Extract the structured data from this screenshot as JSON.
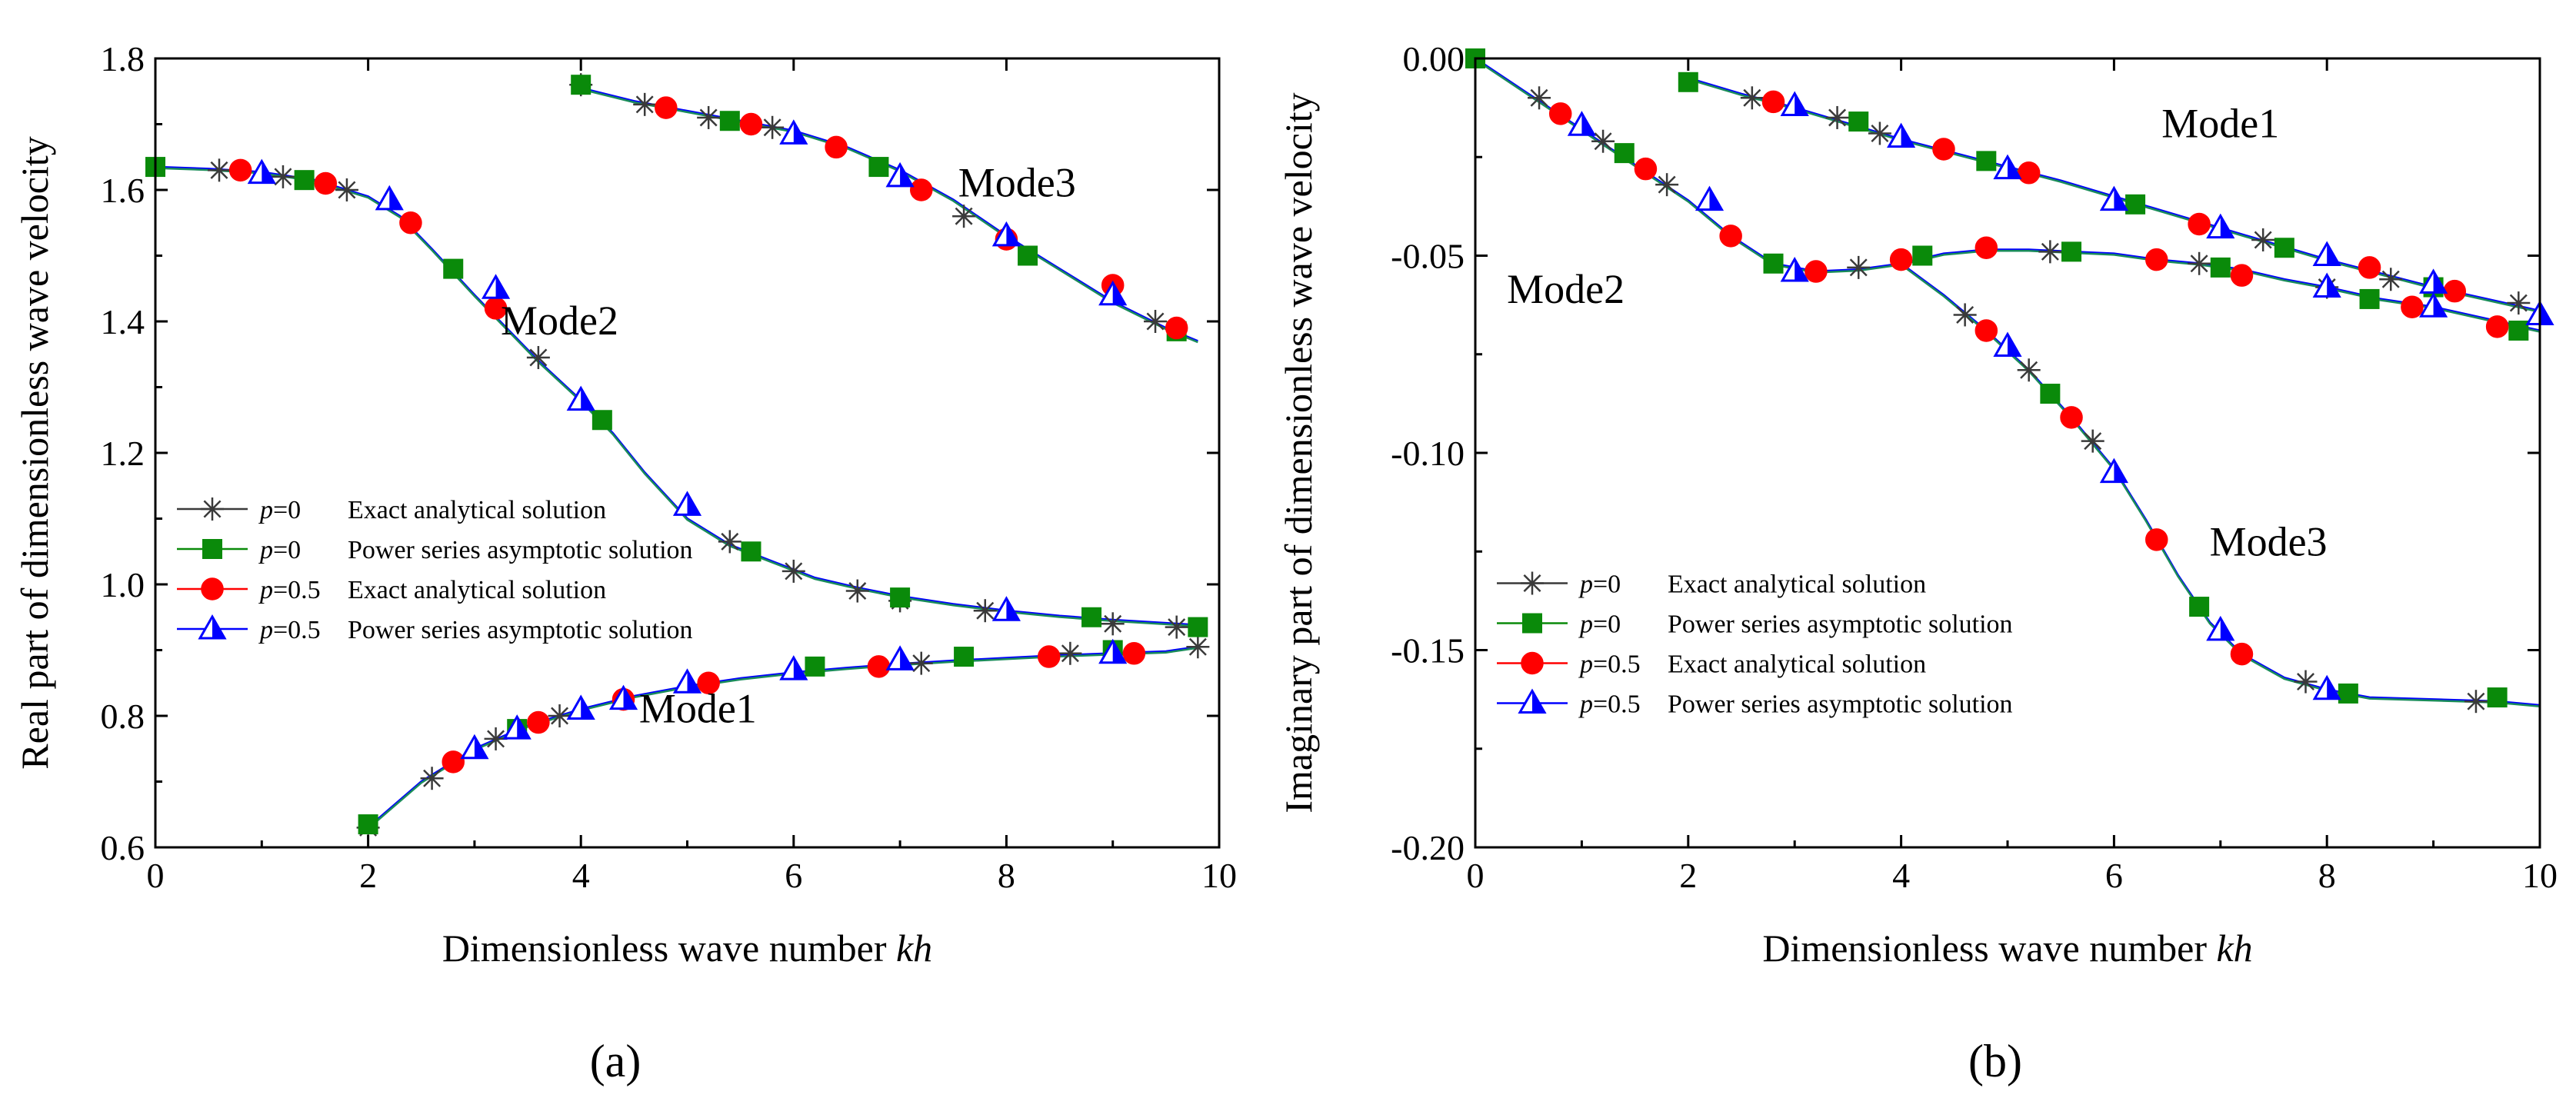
{
  "colors": {
    "exact_p0": "#3a3a3a",
    "series_p0": "#0a8a0a",
    "exact_p05": "#ff0000",
    "series_p05": "#0000ff",
    "curve": "#1a8c5a"
  },
  "chart_data": [
    {
      "type": "line",
      "panel_label": "(a)",
      "xlabel": "Dimensionless wave number ",
      "xlabel_italic": "kh",
      "ylabel": "Real part of dimensionless wave velocity",
      "xlim": [
        0,
        10
      ],
      "ylim": [
        0.6,
        1.8
      ],
      "xticks": [
        0,
        2,
        4,
        6,
        8,
        10
      ],
      "yticks": [
        0.6,
        0.8,
        1.0,
        1.2,
        1.4,
        1.6,
        1.8
      ],
      "ytick_labels": [
        "0.6",
        "0.8",
        "1.0",
        "1.2",
        "1.4",
        "1.6",
        "1.8"
      ],
      "xtick_labels": [
        "0",
        "2",
        "4",
        "6",
        "8",
        "10"
      ],
      "legend_position": "bottom-left",
      "legend": [
        {
          "p": "p",
          "eq": "=0",
          "desc": "Exact analytical solution",
          "marker": "star",
          "color_key": "exact_p0"
        },
        {
          "p": "p",
          "eq": "=0",
          "desc": "Power series asymptotic solution",
          "marker": "square",
          "color_key": "series_p0"
        },
        {
          "p": "p",
          "eq": "=0.5",
          "desc": "Exact analytical solution",
          "marker": "circle",
          "color_key": "exact_p05"
        },
        {
          "p": "p",
          "eq": "=0.5",
          "desc": "Power series asymptotic solution",
          "marker": "triangle",
          "color_key": "series_p05"
        }
      ],
      "annotations": [
        {
          "text": "Mode3",
          "x": 8.1,
          "y": 1.59
        },
        {
          "text": "Mode2",
          "x": 3.8,
          "y": 1.38
        },
        {
          "text": "Mode1",
          "x": 5.1,
          "y": 0.79
        }
      ],
      "curves": [
        {
          "mode": "Mode1",
          "x": [
            2.0,
            2.5,
            3.0,
            3.5,
            4.0,
            4.5,
            5.0,
            5.5,
            6.0,
            6.5,
            7.0,
            7.5,
            8.0,
            8.5,
            9.0,
            9.5,
            9.8
          ],
          "y": [
            0.63,
            0.7,
            0.75,
            0.785,
            0.81,
            0.83,
            0.845,
            0.857,
            0.866,
            0.873,
            0.879,
            0.884,
            0.888,
            0.892,
            0.895,
            0.898,
            0.905
          ]
        },
        {
          "mode": "Mode2",
          "x": [
            0.0,
            0.5,
            1.0,
            1.5,
            2.0,
            2.3,
            2.6,
            3.0,
            3.3,
            3.6,
            4.0,
            4.3,
            4.6,
            5.0,
            5.4,
            5.8,
            6.2,
            6.6,
            7.0,
            7.5,
            8.0,
            8.5,
            9.0,
            9.5,
            9.8
          ],
          "y": [
            1.635,
            1.632,
            1.627,
            1.615,
            1.59,
            1.56,
            1.51,
            1.44,
            1.39,
            1.34,
            1.28,
            1.23,
            1.17,
            1.1,
            1.06,
            1.035,
            1.01,
            0.995,
            0.982,
            0.97,
            0.96,
            0.952,
            0.946,
            0.941,
            0.938
          ]
        },
        {
          "mode": "Mode3",
          "x": [
            4.0,
            4.5,
            5.0,
            5.5,
            6.0,
            6.5,
            7.0,
            7.5,
            8.0,
            8.5,
            9.0,
            9.5,
            9.8
          ],
          "y": [
            1.755,
            1.735,
            1.72,
            1.705,
            1.69,
            1.665,
            1.63,
            1.585,
            1.53,
            1.48,
            1.43,
            1.39,
            1.37
          ]
        }
      ],
      "series": [
        {
          "name": "p=0 Exact analytical solution",
          "marker": "star",
          "color_key": "exact_p0",
          "x": [
            0.6,
            1.2,
            1.8,
            2.0,
            2.6,
            3.2,
            3.6,
            3.8,
            4.0,
            4.6,
            5.2,
            5.4,
            5.8,
            6.0,
            6.6,
            7.0,
            7.2,
            7.6,
            7.8,
            8.6,
            9.0,
            9.4,
            9.6,
            9.8
          ],
          "y": [
            1.63,
            1.62,
            1.6,
            0.63,
            0.705,
            0.765,
            1.345,
            0.8,
            1.76,
            1.73,
            1.71,
            1.065,
            1.695,
            1.02,
            0.99,
            0.975,
            0.88,
            1.56,
            0.96,
            0.895,
            0.94,
            1.4,
            0.935,
            0.905
          ]
        },
        {
          "name": "p=0 Power series asymptotic solution",
          "marker": "square",
          "color_key": "series_p0",
          "x": [
            0.0,
            1.4,
            2.0,
            2.8,
            3.4,
            4.0,
            4.2,
            5.4,
            5.6,
            6.2,
            6.8,
            7.0,
            7.6,
            8.2,
            8.8,
            9.0,
            9.6,
            9.8
          ],
          "y": [
            1.635,
            1.615,
            0.635,
            1.48,
            0.78,
            1.76,
            1.25,
            1.705,
            1.05,
            0.875,
            1.635,
            0.98,
            0.89,
            1.5,
            0.95,
            0.9,
            1.385,
            0.935
          ]
        },
        {
          "name": "p=0.5 Exact analytical solution",
          "marker": "circle",
          "color_key": "exact_p05",
          "x": [
            0.8,
            1.6,
            2.4,
            2.8,
            3.2,
            3.6,
            4.4,
            4.8,
            5.2,
            5.6,
            6.4,
            6.8,
            7.2,
            8.0,
            8.4,
            9.0,
            9.2,
            9.6
          ],
          "y": [
            1.63,
            1.61,
            1.55,
            0.73,
            1.42,
            0.79,
            0.825,
            1.725,
            0.85,
            1.7,
            1.665,
            0.875,
            1.6,
            1.525,
            0.89,
            1.455,
            0.895,
            1.39
          ]
        },
        {
          "name": "p=0.5 Power series asymptotic solution",
          "marker": "triangle",
          "color_key": "series_p05",
          "x": [
            1.0,
            2.2,
            3.0,
            3.2,
            3.4,
            4.0,
            4.0,
            4.4,
            5.0,
            5.0,
            6.0,
            6.0,
            7.0,
            7.0,
            8.0,
            8.0,
            9.0,
            9.0
          ],
          "y": [
            1.625,
            1.585,
            0.75,
            1.45,
            0.78,
            1.28,
            0.81,
            0.825,
            1.12,
            0.85,
            1.685,
            0.87,
            1.62,
            0.885,
            1.53,
            0.96,
            1.44,
            0.895
          ]
        }
      ]
    },
    {
      "type": "line",
      "panel_label": "(b)",
      "xlabel": "Dimensionless wave number ",
      "xlabel_italic": "kh",
      "ylabel": "Imaginary part of dimensionless wave velocity",
      "xlim": [
        0,
        10
      ],
      "ylim": [
        -0.2,
        0.0
      ],
      "xticks": [
        0,
        2,
        4,
        6,
        8,
        10
      ],
      "yticks": [
        -0.2,
        -0.15,
        -0.1,
        -0.05,
        0.0
      ],
      "ytick_labels": [
        "-0.20",
        "-0.15",
        "-0.10",
        "-0.05",
        "0.00"
      ],
      "xtick_labels": [
        "0",
        "2",
        "4",
        "6",
        "8",
        "10"
      ],
      "legend_position": "bottom-left",
      "legend": [
        {
          "p": "p",
          "eq": "=0",
          "desc": "Exact analytical solution",
          "marker": "star",
          "color_key": "exact_p0"
        },
        {
          "p": "p",
          "eq": "=0",
          "desc": "Power series asymptotic solution",
          "marker": "square",
          "color_key": "series_p0"
        },
        {
          "p": "p",
          "eq": "=0.5",
          "desc": "Exact analytical solution",
          "marker": "circle",
          "color_key": "exact_p05"
        },
        {
          "p": "p",
          "eq": "=0.5",
          "desc": "Power series asymptotic solution",
          "marker": "triangle",
          "color_key": "series_p05"
        }
      ],
      "annotations": [
        {
          "text": "Mode1",
          "x": 7.0,
          "y": -0.02
        },
        {
          "text": "Mode2",
          "x": 0.85,
          "y": -0.062
        },
        {
          "text": "Mode3",
          "x": 7.45,
          "y": -0.126
        }
      ],
      "curves": [
        {
          "mode": "Mode1",
          "x": [
            2.0,
            2.5,
            3.0,
            3.5,
            4.0,
            4.5,
            5.0,
            5.5,
            6.0,
            6.5,
            7.0,
            7.5,
            8.0,
            8.5,
            9.0,
            9.5,
            10.0
          ],
          "y": [
            -0.005,
            -0.009,
            -0.0125,
            -0.0165,
            -0.0205,
            -0.024,
            -0.0275,
            -0.031,
            -0.035,
            -0.039,
            -0.043,
            -0.047,
            -0.051,
            -0.0545,
            -0.058,
            -0.061,
            -0.064
          ]
        },
        {
          "mode": "Mode2",
          "x": [
            0.0,
            0.5,
            1.0,
            1.5,
            2.0,
            2.4,
            2.8,
            3.2,
            3.6,
            4.0,
            4.4,
            4.8,
            5.2,
            5.6,
            6.0,
            6.4,
            6.8,
            7.2,
            7.6,
            8.0,
            8.5,
            9.0,
            9.5,
            10.0
          ],
          "y": [
            0.0,
            -0.009,
            -0.018,
            -0.027,
            -0.036,
            -0.045,
            -0.052,
            -0.054,
            -0.0535,
            -0.052,
            -0.0495,
            -0.0485,
            -0.0485,
            -0.049,
            -0.0495,
            -0.051,
            -0.052,
            -0.0535,
            -0.056,
            -0.058,
            -0.061,
            -0.063,
            -0.066,
            -0.069
          ]
        },
        {
          "mode": "Mode3",
          "x": [
            4.0,
            4.4,
            4.8,
            5.2,
            5.6,
            6.0,
            6.3,
            6.6,
            6.9,
            7.2,
            7.6,
            8.0,
            8.4,
            9.0,
            9.6,
            10.0
          ],
          "y": [
            -0.052,
            -0.06,
            -0.069,
            -0.079,
            -0.091,
            -0.104,
            -0.117,
            -0.131,
            -0.143,
            -0.151,
            -0.157,
            -0.16,
            -0.162,
            -0.1625,
            -0.163,
            -0.164
          ]
        }
      ],
      "series": [
        {
          "name": "p=0 Exact analytical solution",
          "marker": "star",
          "color_key": "exact_p0",
          "x": [
            0.6,
            1.2,
            1.8,
            2.6,
            3.4,
            3.6,
            3.8,
            4.6,
            5.2,
            5.4,
            5.8,
            6.8,
            7.4,
            7.8,
            8.0,
            8.6,
            9.4,
            9.8
          ],
          "y": [
            -0.01,
            -0.021,
            -0.032,
            -0.01,
            -0.015,
            -0.053,
            -0.019,
            -0.065,
            -0.079,
            -0.049,
            -0.097,
            -0.052,
            -0.046,
            -0.158,
            -0.058,
            -0.056,
            -0.163,
            -0.062
          ]
        },
        {
          "name": "p=0 Power series asymptotic solution",
          "marker": "square",
          "color_key": "series_p0",
          "x": [
            0.0,
            1.4,
            2.0,
            2.8,
            3.6,
            4.2,
            4.8,
            5.4,
            5.6,
            6.2,
            6.8,
            7.0,
            7.6,
            8.4,
            8.2,
            9.0,
            9.6,
            9.8
          ],
          "y": [
            0.0,
            -0.024,
            -0.006,
            -0.052,
            -0.016,
            -0.05,
            -0.026,
            -0.085,
            -0.049,
            -0.037,
            -0.139,
            -0.053,
            -0.048,
            -0.061,
            -0.161,
            -0.058,
            -0.162,
            -0.069
          ]
        },
        {
          "name": "p=0.5 Exact analytical solution",
          "marker": "circle",
          "color_key": "exact_p05",
          "x": [
            0.8,
            1.6,
            2.4,
            2.8,
            3.2,
            4.0,
            4.4,
            4.8,
            4.8,
            5.2,
            5.6,
            6.4,
            6.4,
            6.8,
            7.2,
            7.2,
            8.4,
            8.8,
            9.2,
            9.6
          ],
          "y": [
            -0.014,
            -0.028,
            -0.045,
            -0.011,
            -0.054,
            -0.051,
            -0.023,
            -0.048,
            -0.069,
            -0.029,
            -0.091,
            -0.051,
            -0.122,
            -0.042,
            -0.151,
            -0.055,
            -0.053,
            -0.063,
            -0.059,
            -0.068
          ]
        },
        {
          "name": "p=0.5 Power series asymptotic solution",
          "marker": "triangle",
          "color_key": "series_p05",
          "x": [
            1.0,
            2.2,
            3.0,
            3.0,
            4.0,
            5.0,
            5.0,
            6.0,
            6.0,
            7.0,
            7.0,
            8.0,
            8.0,
            8.0,
            9.0,
            9.0,
            10.0
          ],
          "y": [
            -0.017,
            -0.036,
            -0.012,
            -0.054,
            -0.02,
            -0.028,
            -0.073,
            -0.036,
            -0.105,
            -0.043,
            -0.145,
            -0.05,
            -0.058,
            -0.16,
            -0.057,
            -0.063,
            -0.065
          ]
        }
      ]
    }
  ]
}
